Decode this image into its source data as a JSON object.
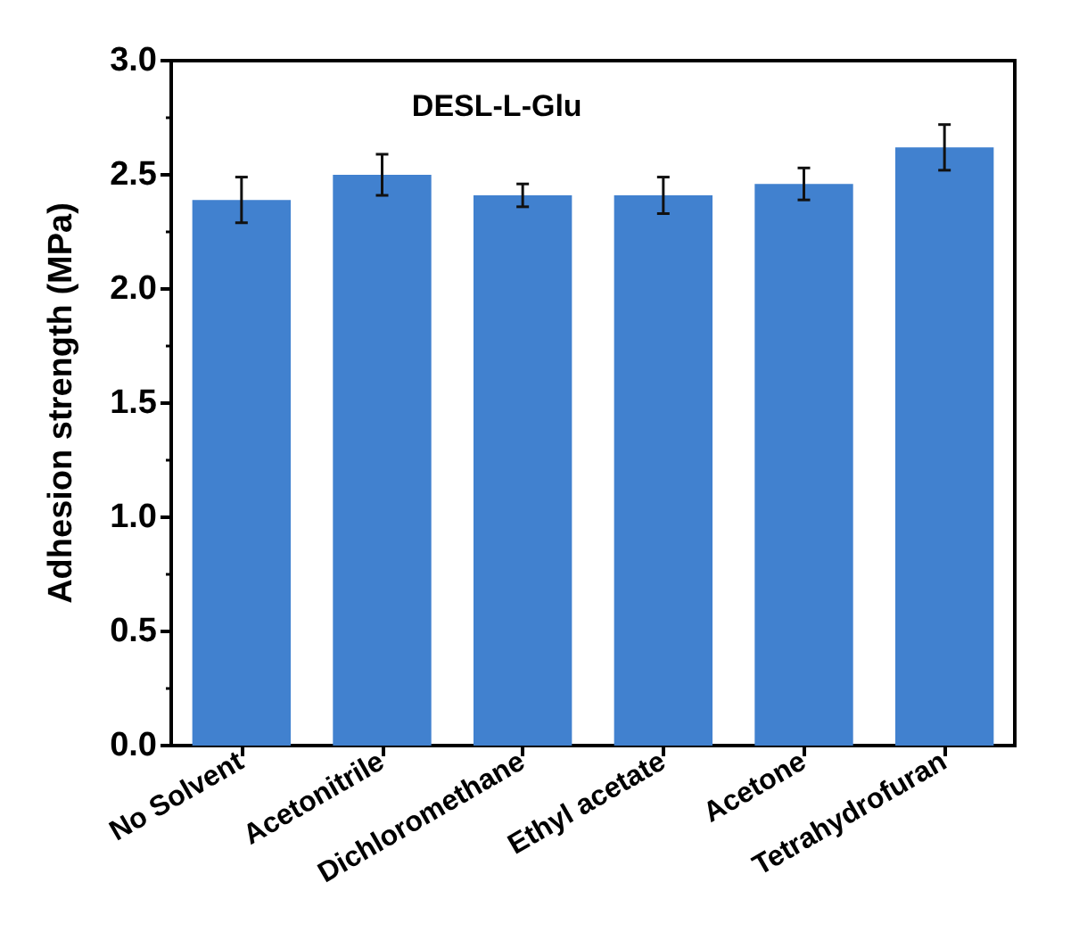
{
  "chart_data": {
    "type": "bar",
    "title": "DESL-L-Glu",
    "ylabel": "Adhesion strength (MPa)",
    "categories": [
      "No Solvent",
      "Acetonitrile",
      "Dichloromethane",
      "Ethyl acetate",
      "Acetone",
      "Tetrahydrofuran"
    ],
    "values": [
      2.39,
      2.5,
      2.41,
      2.41,
      2.46,
      2.62
    ],
    "errors": [
      0.1,
      0.09,
      0.05,
      0.08,
      0.07,
      0.1
    ],
    "color": "#4181cf",
    "ylim": [
      0,
      3
    ],
    "yticks": [
      {
        "value": 0,
        "label": "0.0"
      },
      0.5,
      {
        "value": 1,
        "label": "1.0"
      },
      1.5,
      {
        "value": 2,
        "label": "2.0"
      },
      2.5,
      {
        "value": 3,
        "label": "3.0"
      }
    ],
    "grid": false
  }
}
